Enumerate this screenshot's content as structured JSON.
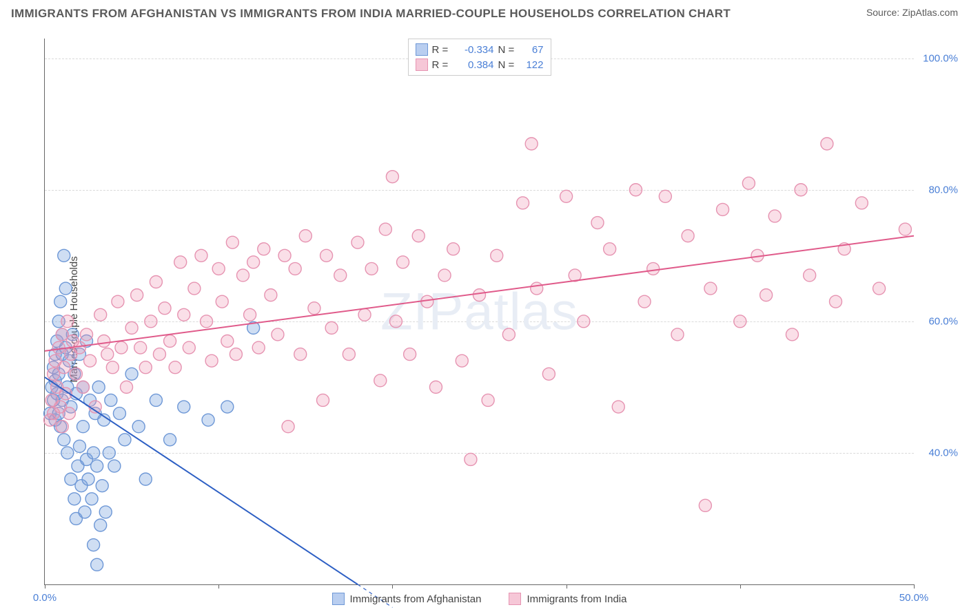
{
  "title": "IMMIGRANTS FROM AFGHANISTAN VS IMMIGRANTS FROM INDIA MARRIED-COUPLE HOUSEHOLDS CORRELATION CHART",
  "source_label": "Source: ZipAtlas.com",
  "watermark": "ZIPatlas",
  "y_axis_label": "Married-couple Households",
  "chart": {
    "type": "scatter",
    "background_color": "#ffffff",
    "grid_color": "#d9d9d9",
    "axis_color": "#666666",
    "tick_label_color": "#4a7fd6",
    "text_color": "#5a5a5a",
    "xlim": [
      0,
      50
    ],
    "ylim": [
      20,
      103
    ],
    "x_ticks": [
      0,
      10,
      20,
      30,
      40,
      50
    ],
    "x_tick_labels": [
      "0.0%",
      "",
      "",
      "",
      "",
      "50.0%"
    ],
    "y_ticks": [
      40,
      60,
      80,
      100
    ],
    "y_tick_labels": [
      "40.0%",
      "60.0%",
      "80.0%",
      "100.0%"
    ],
    "marker_radius": 9,
    "marker_stroke_width": 1.4,
    "line_width": 2,
    "series": [
      {
        "name": "Immigrants from Afghanistan",
        "fill_color": "rgba(118,160,220,0.35)",
        "stroke_color": "#6d97d6",
        "line_color": "#2d5fc4",
        "legend_swatch_fill": "#b9cef0",
        "legend_swatch_stroke": "#6d97d6",
        "R": "-0.334",
        "N": "67",
        "regression": {
          "x1": 0,
          "y1": 51.5,
          "x2": 18,
          "y2": 20,
          "extrapolate_to_x": 20
        },
        "points": [
          [
            0.3,
            46
          ],
          [
            0.4,
            50
          ],
          [
            0.5,
            53
          ],
          [
            0.5,
            48
          ],
          [
            0.6,
            55
          ],
          [
            0.6,
            45
          ],
          [
            0.6,
            51
          ],
          [
            0.7,
            57
          ],
          [
            0.7,
            49
          ],
          [
            0.8,
            60
          ],
          [
            0.8,
            46
          ],
          [
            0.8,
            52
          ],
          [
            0.9,
            63
          ],
          [
            0.9,
            44
          ],
          [
            1.0,
            55
          ],
          [
            1.0,
            48
          ],
          [
            1.0,
            58
          ],
          [
            1.1,
            70
          ],
          [
            1.1,
            42
          ],
          [
            1.2,
            56
          ],
          [
            1.2,
            65
          ],
          [
            1.3,
            50
          ],
          [
            1.3,
            40
          ],
          [
            1.4,
            54
          ],
          [
            1.5,
            36
          ],
          [
            1.5,
            47
          ],
          [
            1.6,
            58
          ],
          [
            1.7,
            33
          ],
          [
            1.7,
            52
          ],
          [
            1.8,
            30
          ],
          [
            1.8,
            49
          ],
          [
            1.9,
            38
          ],
          [
            2.0,
            41
          ],
          [
            2.0,
            55
          ],
          [
            2.1,
            35
          ],
          [
            2.2,
            44
          ],
          [
            2.2,
            50
          ],
          [
            2.3,
            31
          ],
          [
            2.4,
            39
          ],
          [
            2.4,
            57
          ],
          [
            2.5,
            36
          ],
          [
            2.6,
            48
          ],
          [
            2.7,
            33
          ],
          [
            2.8,
            26
          ],
          [
            2.8,
            40
          ],
          [
            2.9,
            46
          ],
          [
            3.0,
            23
          ],
          [
            3.0,
            38
          ],
          [
            3.1,
            50
          ],
          [
            3.2,
            29
          ],
          [
            3.3,
            35
          ],
          [
            3.4,
            45
          ],
          [
            3.5,
            31
          ],
          [
            3.7,
            40
          ],
          [
            3.8,
            48
          ],
          [
            4.0,
            38
          ],
          [
            4.3,
            46
          ],
          [
            4.6,
            42
          ],
          [
            5.0,
            52
          ],
          [
            5.4,
            44
          ],
          [
            5.8,
            36
          ],
          [
            6.4,
            48
          ],
          [
            7.2,
            42
          ],
          [
            8.0,
            47
          ],
          [
            9.4,
            45
          ],
          [
            10.5,
            47
          ],
          [
            12.0,
            59
          ]
        ]
      },
      {
        "name": "Immigrants from India",
        "fill_color": "rgba(240,150,180,0.30)",
        "stroke_color": "#e693b1",
        "line_color": "#e05a8a",
        "legend_swatch_fill": "#f6c7d7",
        "legend_swatch_stroke": "#e693b1",
        "R": "0.384",
        "N": "122",
        "regression": {
          "x1": 0,
          "y1": 55.5,
          "x2": 50,
          "y2": 73
        },
        "points": [
          [
            0.3,
            45
          ],
          [
            0.4,
            48
          ],
          [
            0.5,
            52
          ],
          [
            0.5,
            46
          ],
          [
            0.6,
            54
          ],
          [
            0.7,
            50
          ],
          [
            0.8,
            56
          ],
          [
            0.9,
            47
          ],
          [
            1.0,
            58
          ],
          [
            1.0,
            44
          ],
          [
            1.1,
            53
          ],
          [
            1.2,
            49
          ],
          [
            1.3,
            60
          ],
          [
            1.4,
            46
          ],
          [
            1.5,
            55
          ],
          [
            1.6,
            57
          ],
          [
            1.8,
            52
          ],
          [
            2.0,
            56
          ],
          [
            2.2,
            50
          ],
          [
            2.4,
            58
          ],
          [
            2.6,
            54
          ],
          [
            2.9,
            47
          ],
          [
            3.2,
            61
          ],
          [
            3.4,
            57
          ],
          [
            3.6,
            55
          ],
          [
            3.9,
            53
          ],
          [
            4.2,
            63
          ],
          [
            4.4,
            56
          ],
          [
            4.7,
            50
          ],
          [
            5.0,
            59
          ],
          [
            5.3,
            64
          ],
          [
            5.5,
            56
          ],
          [
            5.8,
            53
          ],
          [
            6.1,
            60
          ],
          [
            6.4,
            66
          ],
          [
            6.6,
            55
          ],
          [
            6.9,
            62
          ],
          [
            7.2,
            57
          ],
          [
            7.5,
            53
          ],
          [
            7.8,
            69
          ],
          [
            8.0,
            61
          ],
          [
            8.3,
            56
          ],
          [
            8.6,
            65
          ],
          [
            9.0,
            70
          ],
          [
            9.3,
            60
          ],
          [
            9.6,
            54
          ],
          [
            10.0,
            68
          ],
          [
            10.2,
            63
          ],
          [
            10.5,
            57
          ],
          [
            10.8,
            72
          ],
          [
            11.0,
            55
          ],
          [
            11.4,
            67
          ],
          [
            11.8,
            61
          ],
          [
            12.0,
            69
          ],
          [
            12.3,
            56
          ],
          [
            12.6,
            71
          ],
          [
            13.0,
            64
          ],
          [
            13.4,
            58
          ],
          [
            13.8,
            70
          ],
          [
            14.0,
            44
          ],
          [
            14.4,
            68
          ],
          [
            14.7,
            55
          ],
          [
            15.0,
            73
          ],
          [
            15.5,
            62
          ],
          [
            16.0,
            48
          ],
          [
            16.2,
            70
          ],
          [
            16.5,
            59
          ],
          [
            17.0,
            67
          ],
          [
            17.5,
            55
          ],
          [
            18.0,
            72
          ],
          [
            18.4,
            61
          ],
          [
            18.8,
            68
          ],
          [
            19.3,
            51
          ],
          [
            19.6,
            74
          ],
          [
            20.0,
            82
          ],
          [
            20.2,
            60
          ],
          [
            20.6,
            69
          ],
          [
            21.0,
            55
          ],
          [
            21.5,
            73
          ],
          [
            22.0,
            63
          ],
          [
            22.5,
            50
          ],
          [
            23.0,
            67
          ],
          [
            23.5,
            71
          ],
          [
            24.0,
            54
          ],
          [
            24.5,
            39
          ],
          [
            25.0,
            64
          ],
          [
            25.5,
            48
          ],
          [
            26.0,
            70
          ],
          [
            26.7,
            58
          ],
          [
            27.5,
            78
          ],
          [
            28.0,
            87
          ],
          [
            28.3,
            65
          ],
          [
            29.0,
            52
          ],
          [
            30.0,
            79
          ],
          [
            30.5,
            67
          ],
          [
            31.0,
            60
          ],
          [
            31.8,
            75
          ],
          [
            32.5,
            71
          ],
          [
            33.0,
            47
          ],
          [
            34.0,
            80
          ],
          [
            34.5,
            63
          ],
          [
            35.0,
            68
          ],
          [
            35.7,
            79
          ],
          [
            36.4,
            58
          ],
          [
            37.0,
            73
          ],
          [
            38.0,
            32
          ],
          [
            38.3,
            65
          ],
          [
            39.0,
            77
          ],
          [
            40.0,
            60
          ],
          [
            40.5,
            81
          ],
          [
            41.0,
            70
          ],
          [
            41.5,
            64
          ],
          [
            42.0,
            76
          ],
          [
            43.0,
            58
          ],
          [
            43.5,
            80
          ],
          [
            44.0,
            67
          ],
          [
            45.0,
            87
          ],
          [
            45.5,
            63
          ],
          [
            46.0,
            71
          ],
          [
            47.0,
            78
          ],
          [
            48.0,
            65
          ],
          [
            49.5,
            74
          ]
        ]
      }
    ]
  },
  "bottom_legend": [
    "Immigrants from Afghanistan",
    "Immigrants from India"
  ]
}
